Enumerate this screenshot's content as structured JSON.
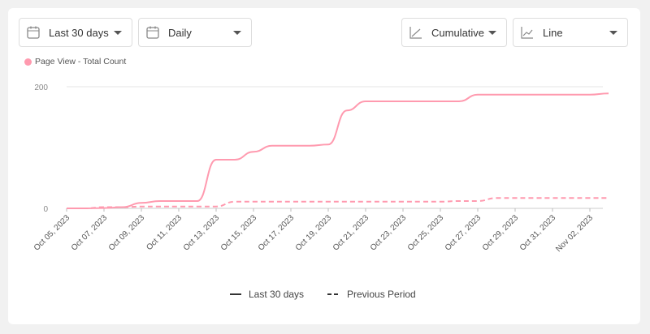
{
  "controls": {
    "range": "Last 30 days",
    "interval": "Daily",
    "mode": "Cumulative",
    "chart_type": "Line"
  },
  "colors": {
    "series": "#ff9aaf"
  },
  "chart_data": {
    "type": "line",
    "title": "",
    "legend_top": "Page View - Total Count",
    "x": [
      "Oct 05, 2023",
      "Oct 06, 2023",
      "Oct 07, 2023",
      "Oct 08, 2023",
      "Oct 09, 2023",
      "Oct 10, 2023",
      "Oct 11, 2023",
      "Oct 12, 2023",
      "Oct 13, 2023",
      "Oct 14, 2023",
      "Oct 15, 2023",
      "Oct 16, 2023",
      "Oct 17, 2023",
      "Oct 18, 2023",
      "Oct 19, 2023",
      "Oct 20, 2023",
      "Oct 21, 2023",
      "Oct 22, 2023",
      "Oct 23, 2023",
      "Oct 24, 2023",
      "Oct 25, 2023",
      "Oct 26, 2023",
      "Oct 27, 2023",
      "Oct 28, 2023",
      "Oct 29, 2023",
      "Oct 30, 2023",
      "Oct 31, 2023",
      "Nov 01, 2023",
      "Nov 02, 2023",
      "Nov 03, 2023"
    ],
    "xticks": [
      "Oct 05, 2023",
      "Oct 07, 2023",
      "Oct 09, 2023",
      "Oct 11, 2023",
      "Oct 13, 2023",
      "Oct 15, 2023",
      "Oct 17, 2023",
      "Oct 19, 2023",
      "Oct 21, 2023",
      "Oct 23, 2023",
      "Oct 25, 2023",
      "Oct 27, 2023",
      "Oct 29, 2023",
      "Oct 31, 2023",
      "Nov 02, 2023"
    ],
    "yticks": [
      0,
      200
    ],
    "ylim": [
      0,
      200
    ],
    "grid": true,
    "series": [
      {
        "name": "Last 30 days",
        "style": "solid",
        "values": [
          0,
          0,
          0.5,
          2,
          9,
          12,
          12,
          12,
          80,
          80,
          93,
          103,
          103,
          103,
          105,
          161,
          176,
          176,
          176,
          176,
          176,
          176,
          187,
          187,
          187,
          187,
          187,
          187,
          187,
          189
        ]
      },
      {
        "name": "Previous Period",
        "style": "dashed",
        "values": [
          0,
          0,
          2,
          2,
          3,
          3,
          3,
          3,
          3,
          11,
          11,
          11,
          11,
          11,
          11,
          11,
          11,
          11,
          11,
          11,
          11,
          12,
          12,
          17,
          17,
          17,
          17,
          17,
          17,
          17
        ]
      }
    ]
  }
}
